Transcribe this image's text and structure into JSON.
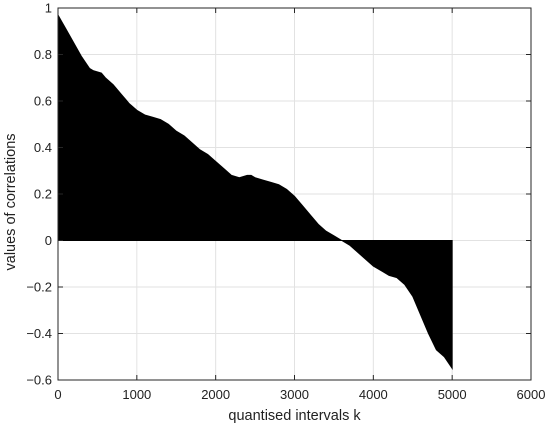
{
  "chart_data": {
    "type": "area",
    "title": "",
    "xlabel": "quantised intervals k",
    "ylabel": "values of correlations",
    "xlim": [
      0,
      6000
    ],
    "ylim": [
      -0.6,
      1
    ],
    "xticks": [
      0,
      1000,
      2000,
      3000,
      4000,
      5000,
      6000
    ],
    "yticks": [
      1,
      0.8,
      0.6,
      0.4,
      0.2,
      0,
      -0.2,
      -0.4,
      -0.6
    ],
    "xtick_labels": [
      "0",
      "1000",
      "2000",
      "3000",
      "4000",
      "5000",
      "6000"
    ],
    "ytick_labels": [
      "1",
      "0.8",
      "0.6",
      "0.4",
      "0.2",
      "0",
      "−0.2",
      "−0.4",
      "−0.6"
    ],
    "grid": true,
    "fill_color": "#000000",
    "series": [
      {
        "x": [
          0,
          50,
          100,
          200,
          300,
          400,
          450,
          550,
          600,
          700,
          800,
          900,
          1000,
          1100,
          1200,
          1300,
          1400,
          1500,
          1600,
          1700,
          1800,
          1900,
          2000,
          2100,
          2200,
          2300,
          2400,
          2450,
          2500,
          2600,
          2700,
          2800,
          2900,
          3000,
          3100,
          3200,
          3300,
          3400,
          3500,
          3600,
          3700,
          3800,
          3900,
          4000,
          4100,
          4200,
          4300,
          4400,
          4500,
          4600,
          4700,
          4800,
          4900,
          5000
        ],
        "y": [
          0.97,
          0.94,
          0.91,
          0.85,
          0.79,
          0.74,
          0.73,
          0.72,
          0.7,
          0.67,
          0.63,
          0.59,
          0.56,
          0.54,
          0.53,
          0.52,
          0.5,
          0.47,
          0.45,
          0.42,
          0.39,
          0.37,
          0.34,
          0.31,
          0.28,
          0.27,
          0.28,
          0.28,
          0.27,
          0.26,
          0.25,
          0.24,
          0.22,
          0.19,
          0.15,
          0.11,
          0.07,
          0.04,
          0.02,
          0.0,
          -0.02,
          -0.05,
          -0.08,
          -0.11,
          -0.13,
          -0.15,
          -0.16,
          -0.19,
          -0.24,
          -0.32,
          -0.4,
          -0.47,
          -0.5,
          -0.55
        ]
      }
    ]
  }
}
